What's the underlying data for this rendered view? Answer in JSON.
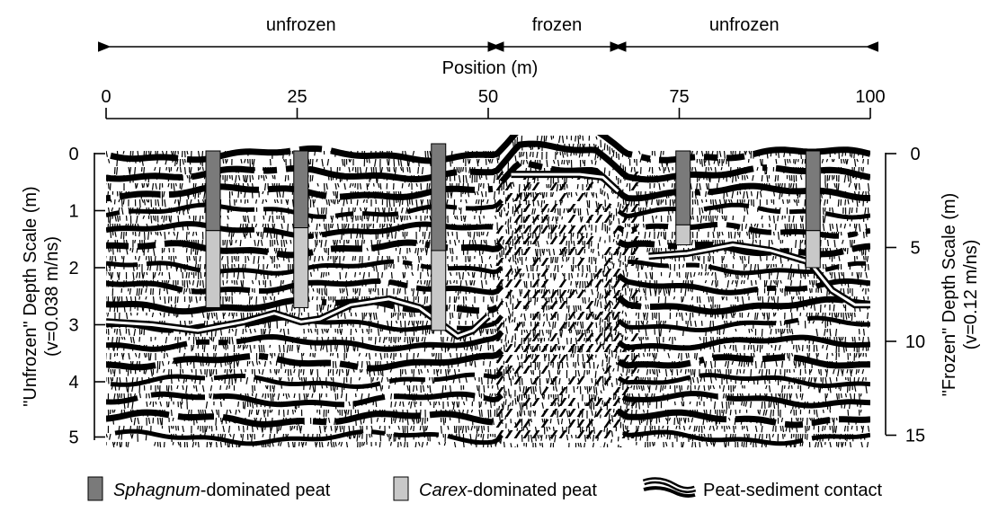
{
  "zones": [
    {
      "label": "unfrozen",
      "from": 0,
      "to": 51
    },
    {
      "label": "frozen",
      "from": 51,
      "to": 67
    },
    {
      "label": "unfrozen",
      "from": 67,
      "to": 100
    }
  ],
  "position_axis": {
    "title": "Position (m)",
    "ticks": [
      {
        "value": 0,
        "label": "0"
      },
      {
        "value": 25,
        "label": "25"
      },
      {
        "value": 50,
        "label": "50"
      },
      {
        "value": 75,
        "label": "75"
      },
      {
        "value": 100,
        "label": "100"
      }
    ]
  },
  "left_axis": {
    "title_line1": "\"Unfrozen\" Depth Scale (m)",
    "title_line2": "(v=0.038 m/ns)",
    "ticks": [
      {
        "value": 0,
        "label": "0"
      },
      {
        "value": 1,
        "label": "1"
      },
      {
        "value": 2,
        "label": "2"
      },
      {
        "value": 3,
        "label": "3"
      },
      {
        "value": 4,
        "label": "4"
      },
      {
        "value": 5,
        "label": "5"
      }
    ]
  },
  "right_axis": {
    "title_line1": "\"Frozen\" Depth Scale (m)",
    "title_line2": "(v=0.12 m/ns)",
    "ticks": [
      {
        "value": 0,
        "label": "0"
      },
      {
        "value": 5,
        "label": "5"
      },
      {
        "value": 10,
        "label": "10"
      },
      {
        "value": 15,
        "label": "15"
      }
    ]
  },
  "cores": [
    {
      "position": 14,
      "sphagnum_bottom_m": 1.35,
      "carex_bottom_m": 2.7
    },
    {
      "position": 25.5,
      "sphagnum_bottom_m": 1.3,
      "carex_bottom_m": 2.7
    },
    {
      "position": 43.5,
      "sphagnum_bottom_m": 1.7,
      "carex_bottom_m": 3.1
    },
    {
      "position": 75.5,
      "sphagnum_bottom_m": 1.25,
      "carex_bottom_m": 1.6
    },
    {
      "position": 92.5,
      "sphagnum_bottom_m": 1.35,
      "carex_bottom_m": 2.0
    }
  ],
  "contact_line": {
    "segment_unfrozen_left": [
      [
        0,
        2.95
      ],
      [
        6,
        3.0
      ],
      [
        12,
        3.1
      ],
      [
        18,
        2.95
      ],
      [
        22,
        2.8
      ],
      [
        25.5,
        2.95
      ],
      [
        28,
        2.9
      ],
      [
        32,
        2.65
      ],
      [
        37,
        2.55
      ],
      [
        41,
        2.7
      ],
      [
        44,
        3.0
      ],
      [
        46,
        3.2
      ],
      [
        48,
        3.1
      ],
      [
        50,
        2.85
      ]
    ],
    "segment_frozen": [
      [
        53,
        0.3
      ],
      [
        57,
        0.3
      ],
      [
        62,
        0.3
      ],
      [
        65,
        0.35
      ],
      [
        67,
        0.6
      ]
    ],
    "segment_unfrozen_right": [
      [
        71,
        1.8
      ],
      [
        76,
        1.75
      ],
      [
        82,
        1.6
      ],
      [
        87,
        1.7
      ],
      [
        92,
        1.9
      ],
      [
        95,
        2.4
      ],
      [
        98,
        2.65
      ],
      [
        100,
        2.65
      ]
    ]
  },
  "legend": {
    "sphagnum_italic": "Sphagnum",
    "sphagnum_rest": "-dominated peat",
    "carex_italic": "Carex",
    "carex_rest": "-dominated peat",
    "contact": "Peat-sediment contact"
  },
  "colors": {
    "sphagnum": "#7a7a7a",
    "carex": "#c8c8c8",
    "radar_dark": "#000000",
    "background": "#ffffff"
  }
}
